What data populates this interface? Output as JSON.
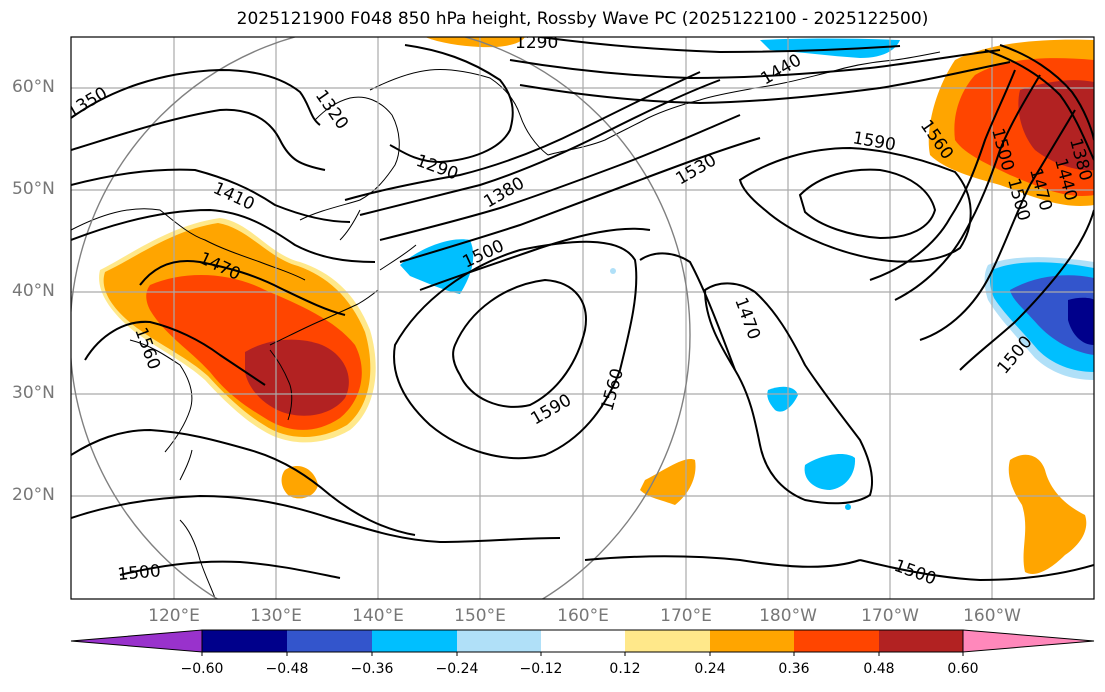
{
  "title": "2025121900 F048 850 hPa height, Rossby Wave PC (2025122100 - 2025122500)",
  "latitude_labels": [
    "60°N",
    "50°N",
    "40°N",
    "30°N",
    "20°N"
  ],
  "longitude_labels": [
    "120°E",
    "130°E",
    "140°E",
    "150°E",
    "160°E",
    "170°E",
    "180°W",
    "170°W",
    "160°W"
  ],
  "contour_labels": [
    "1290",
    "1320",
    "1350",
    "1290",
    "1410",
    "1380",
    "1440",
    "1530",
    "1590",
    "1560",
    "1500",
    "1470",
    "1500",
    "1560",
    "1590",
    "1560",
    "1470",
    "1500",
    "1500",
    "1500",
    "1470",
    "1440",
    "1380",
    "1500"
  ],
  "colorbar": {
    "tick_labels": [
      "−0.60",
      "−0.48",
      "−0.36",
      "−0.24",
      "−0.12",
      "0.12",
      "0.24",
      "0.36",
      "0.48",
      "0.60"
    ],
    "colors": [
      "#9932cc",
      "#00008b",
      "#3355cc",
      "#00bfff",
      "#b0e0f8",
      "#ffffff",
      "#ffe88a",
      "#ffa500",
      "#ff4500",
      "#b22222",
      "#ff88bb"
    ]
  }
}
